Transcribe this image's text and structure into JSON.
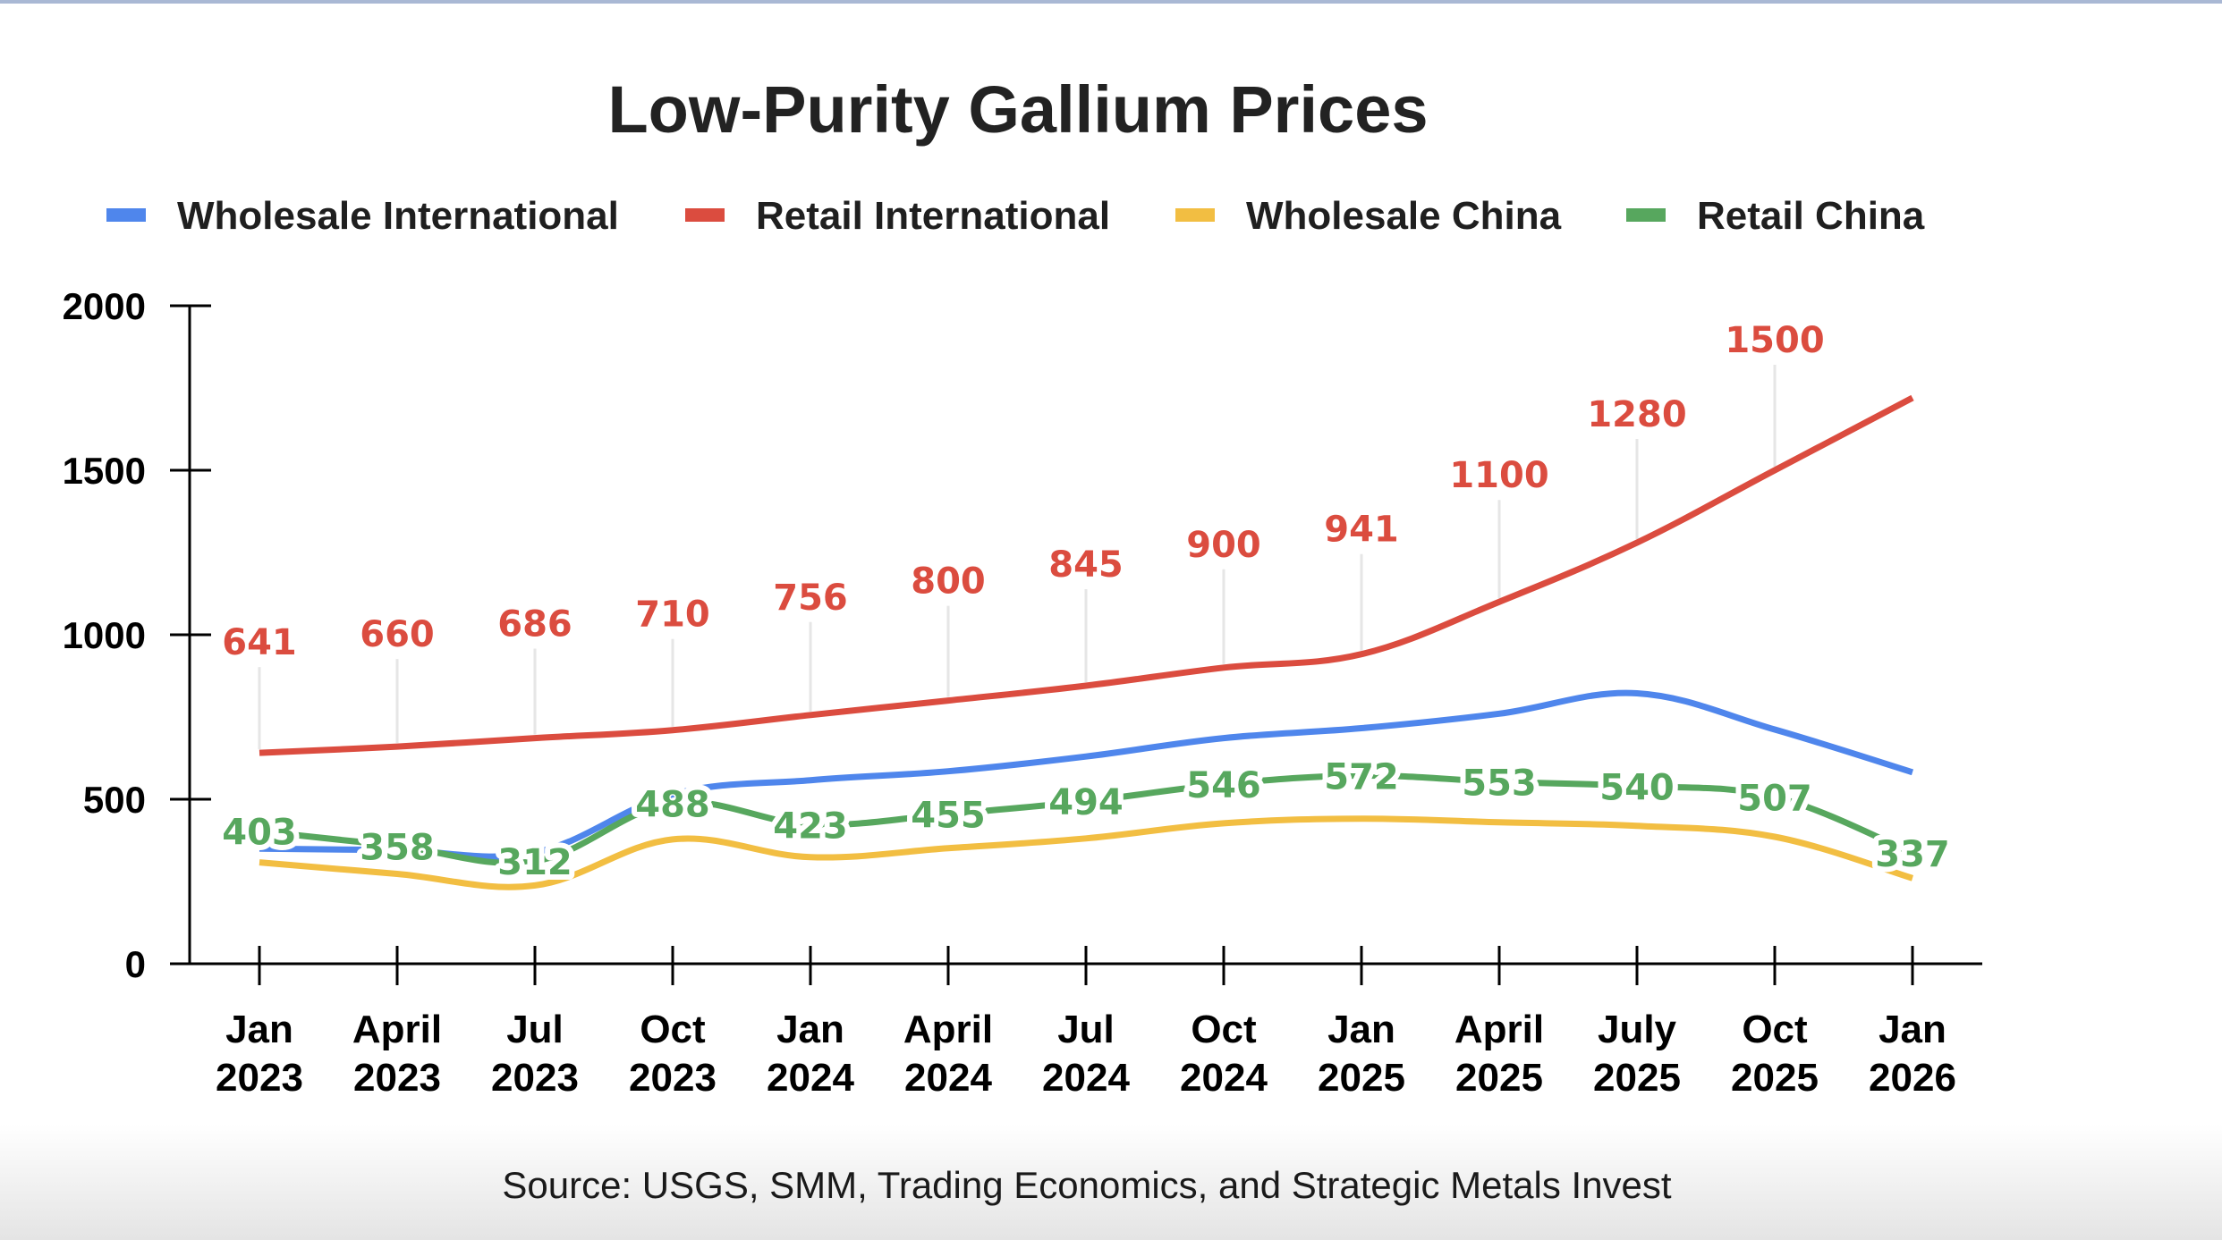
{
  "chart_data": {
    "type": "line",
    "title": "Low-Purity Gallium Prices",
    "xlabel": "",
    "ylabel": "",
    "ylim": [
      0,
      2000
    ],
    "yticks": [
      "0",
      "500",
      "1000",
      "1500",
      "2000"
    ],
    "ytick_values": [
      0,
      500,
      1000,
      1500,
      2000
    ],
    "grid": false,
    "legend_position": "top",
    "categories": [
      {
        "month": "Jan",
        "year": "2023"
      },
      {
        "month": "April",
        "year": "2023"
      },
      {
        "month": "Jul",
        "year": "2023"
      },
      {
        "month": "Oct",
        "year": "2023"
      },
      {
        "month": "Jan",
        "year": "2024"
      },
      {
        "month": "April",
        "year": "2024"
      },
      {
        "month": "Jul",
        "year": "2024"
      },
      {
        "month": "Oct",
        "year": "2024"
      },
      {
        "month": "Jan",
        "year": "2025"
      },
      {
        "month": "April",
        "year": "2025"
      },
      {
        "month": "July",
        "year": "2025"
      },
      {
        "month": "Oct",
        "year": "2025"
      },
      {
        "month": "Jan",
        "year": "2026"
      }
    ],
    "series": [
      {
        "name": "Wholesale International",
        "color": "#4f86ec",
        "values": [
          350,
          345,
          338,
          515,
          558,
          585,
          630,
          686,
          716,
          760,
          822,
          712,
          582
        ],
        "labeled": false
      },
      {
        "name": "Retail International",
        "color": "#db4c3f",
        "values": [
          641,
          660,
          686,
          710,
          756,
          800,
          845,
          900,
          941,
          1100,
          1280,
          1500,
          1720
        ],
        "labels": [
          "641",
          "660",
          "686",
          "710",
          "756",
          "800",
          "845",
          "900",
          "941",
          "1100",
          "1280",
          "1500",
          null
        ],
        "labeled": true
      },
      {
        "name": "Wholesale China",
        "color": "#f2be42",
        "values": [
          308,
          273,
          238,
          378,
          324,
          351,
          381,
          427,
          441,
          430,
          419,
          386,
          260
        ],
        "labeled": false
      },
      {
        "name": "Retail China",
        "color": "#57a75e",
        "values": [
          403,
          358,
          312,
          488,
          423,
          455,
          494,
          546,
          572,
          553,
          540,
          507,
          337
        ],
        "labels": [
          "403",
          "358",
          "312",
          "488",
          "423",
          "455",
          "494",
          "546",
          "572",
          "553",
          "540",
          "507",
          "337"
        ],
        "labeled": true
      }
    ]
  },
  "source_text": "Source: USGS, SMM, Trading Economics, and Strategic Metals Invest"
}
